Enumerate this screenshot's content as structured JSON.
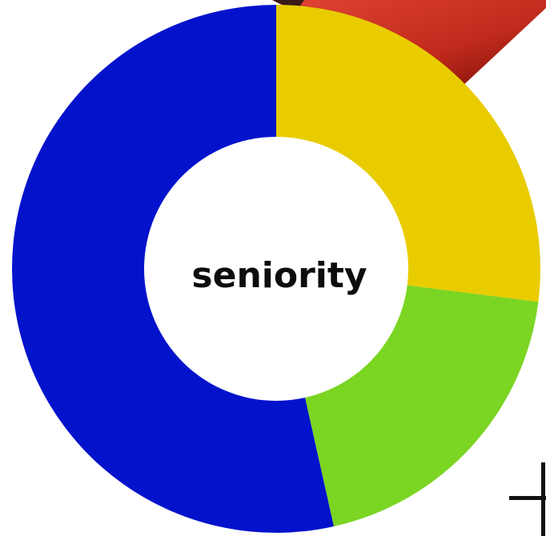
{
  "chart_data": {
    "type": "pie",
    "variant": "donut",
    "center_label": "seniority",
    "slices": [
      {
        "value": 27.0,
        "color": "#E8CC00"
      },
      {
        "value": 19.5,
        "color": "#7BD523"
      },
      {
        "value": 53.5,
        "color": "#0313CC"
      }
    ],
    "start_angle_deg": 0,
    "direction": "clockwise",
    "legend": "none",
    "background_decor": {
      "top_right": "red-gradient-arrow",
      "bottom_right": "black-bracket"
    }
  }
}
